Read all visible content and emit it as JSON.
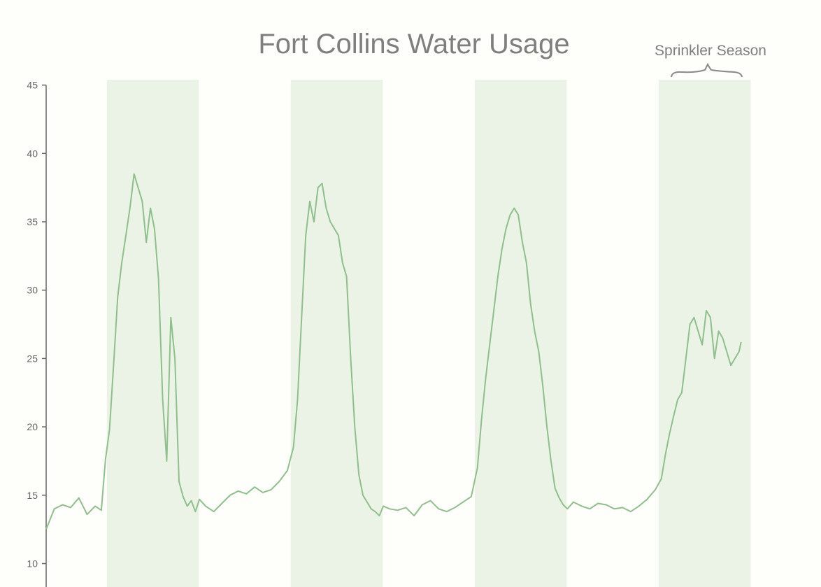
{
  "chart_data": {
    "type": "line",
    "title": "Fort Collins Water Usage",
    "annotation": "Sprinkler Season",
    "xlabel": "",
    "ylabel": "",
    "ylim": [
      10,
      45
    ],
    "yticks": [
      10,
      15,
      20,
      25,
      30,
      35,
      40,
      45
    ],
    "grid": false,
    "legend": "none",
    "colors": {
      "line": "#8fbf8c",
      "season_band": "#ebf3e6",
      "axis": "#666666",
      "text": "#7f7f7f",
      "background": "#fefefa"
    },
    "seasons": [
      {
        "start": 2.97,
        "end": 7.47
      },
      {
        "start": 11.97,
        "end": 16.47
      },
      {
        "start": 20.97,
        "end": 25.47
      },
      {
        "start": 29.97,
        "end": 34.47
      }
    ],
    "series": [
      {
        "x": [
          0,
          0.4,
          0.8,
          1.2,
          1.6,
          2.0,
          2.4,
          2.7,
          2.9,
          3.1,
          3.3,
          3.5,
          3.7,
          3.9,
          4.1,
          4.3,
          4.5,
          4.7,
          4.9,
          5.1,
          5.3,
          5.5,
          5.7,
          5.9,
          6.1,
          6.3,
          6.5,
          6.7,
          6.9,
          7.1,
          7.3,
          7.5,
          7.8,
          8.2,
          8.6,
          9.0,
          9.4,
          9.8,
          10.2,
          10.6,
          11.0,
          11.4,
          11.8,
          12.1,
          12.3,
          12.5,
          12.7,
          12.9,
          13.1,
          13.3,
          13.5,
          13.7,
          13.9,
          14.1,
          14.3,
          14.5,
          14.7,
          14.9,
          15.1,
          15.3,
          15.5,
          15.7,
          15.9,
          16.1,
          16.3,
          16.5,
          16.8,
          17.2,
          17.6,
          18.0,
          18.4,
          18.8,
          19.2,
          19.6,
          20.0,
          20.4,
          20.8,
          21.1,
          21.3,
          21.5,
          21.7,
          21.9,
          22.1,
          22.3,
          22.5,
          22.7,
          22.9,
          23.1,
          23.3,
          23.5,
          23.7,
          23.9,
          24.1,
          24.3,
          24.5,
          24.7,
          24.9,
          25.1,
          25.3,
          25.5,
          25.8,
          26.2,
          26.6,
          27.0,
          27.4,
          27.8,
          28.2,
          28.6,
          29.0,
          29.4,
          29.8,
          30.1,
          30.3,
          30.5,
          30.7,
          30.9,
          31.1,
          31.3,
          31.5,
          31.7,
          31.9,
          32.1,
          32.3,
          32.5,
          32.7,
          32.9,
          33.1,
          33.3,
          33.5,
          33.7,
          33.9,
          34.0
        ],
        "values": [
          12.5,
          14.0,
          14.3,
          14.1,
          14.8,
          13.6,
          14.2,
          13.9,
          17.6,
          19.8,
          24.5,
          29.5,
          32.0,
          34.0,
          36.0,
          38.5,
          37.5,
          36.5,
          33.5,
          36.0,
          34.5,
          30.8,
          22.0,
          17.5,
          28.0,
          25.0,
          16.0,
          14.9,
          14.2,
          14.6,
          13.8,
          14.7,
          14.2,
          13.8,
          14.4,
          15.0,
          15.3,
          15.1,
          15.6,
          15.2,
          15.4,
          16.0,
          16.8,
          18.5,
          22.0,
          28.0,
          34.0,
          36.5,
          35.0,
          37.5,
          37.8,
          36.0,
          35.0,
          34.5,
          34.0,
          32.0,
          31.0,
          25.0,
          20.0,
          16.5,
          15.0,
          14.5,
          14.0,
          13.8,
          13.5,
          14.2,
          14.0,
          13.9,
          14.1,
          13.5,
          14.3,
          14.6,
          14.0,
          13.8,
          14.1,
          14.5,
          14.9,
          17.0,
          20.5,
          23.5,
          26.0,
          28.5,
          31.0,
          33.0,
          34.5,
          35.5,
          36.0,
          35.5,
          33.5,
          32.0,
          29.0,
          27.0,
          25.5,
          23.0,
          20.0,
          17.5,
          15.5,
          14.8,
          14.3,
          14.0,
          14.5,
          14.2,
          14.0,
          14.4,
          14.3,
          14.0,
          14.1,
          13.8,
          14.2,
          14.7,
          15.4,
          16.2,
          18.0,
          19.5,
          20.8,
          22.0,
          22.5,
          25.0,
          27.5,
          28.0,
          27.0,
          26.0,
          28.5,
          28.0,
          25.0,
          27.0,
          26.5,
          25.5,
          24.5,
          25.0,
          25.5,
          26.2
        ]
      }
    ]
  }
}
